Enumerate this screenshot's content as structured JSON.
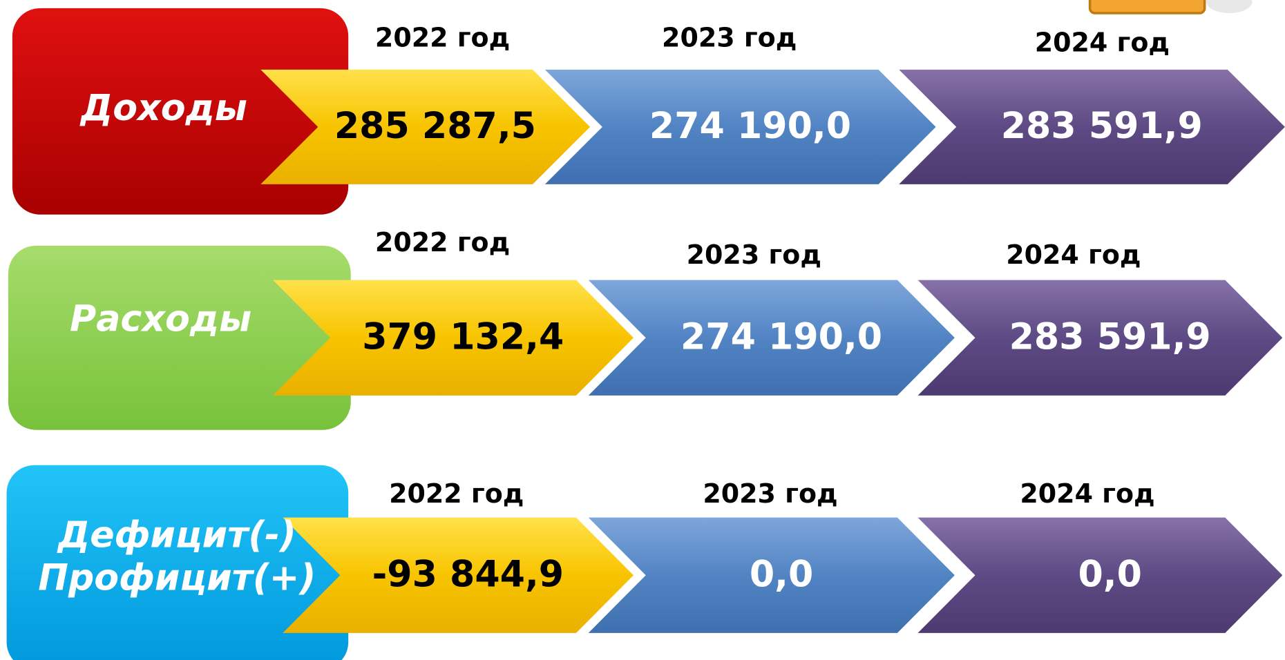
{
  "rows": [
    {
      "label": [
        "Доходы"
      ],
      "years": [
        "2022 год",
        "2023 год",
        "2024 год"
      ],
      "values": [
        "285 287,5",
        "274 190,0",
        "283 591,9"
      ]
    },
    {
      "label": [
        "Расходы"
      ],
      "years": [
        "2022 год",
        "2023 год",
        "2024 год"
      ],
      "values": [
        "379 132,4",
        "274 190,0",
        "283 591,9"
      ]
    },
    {
      "label": [
        "Дефицит(-)",
        "Профицит(+)"
      ],
      "years": [
        "2022 год",
        "2023 год",
        "2024 год"
      ],
      "values": [
        "-93 844,9",
        "0,0",
        "0,0"
      ]
    }
  ]
}
